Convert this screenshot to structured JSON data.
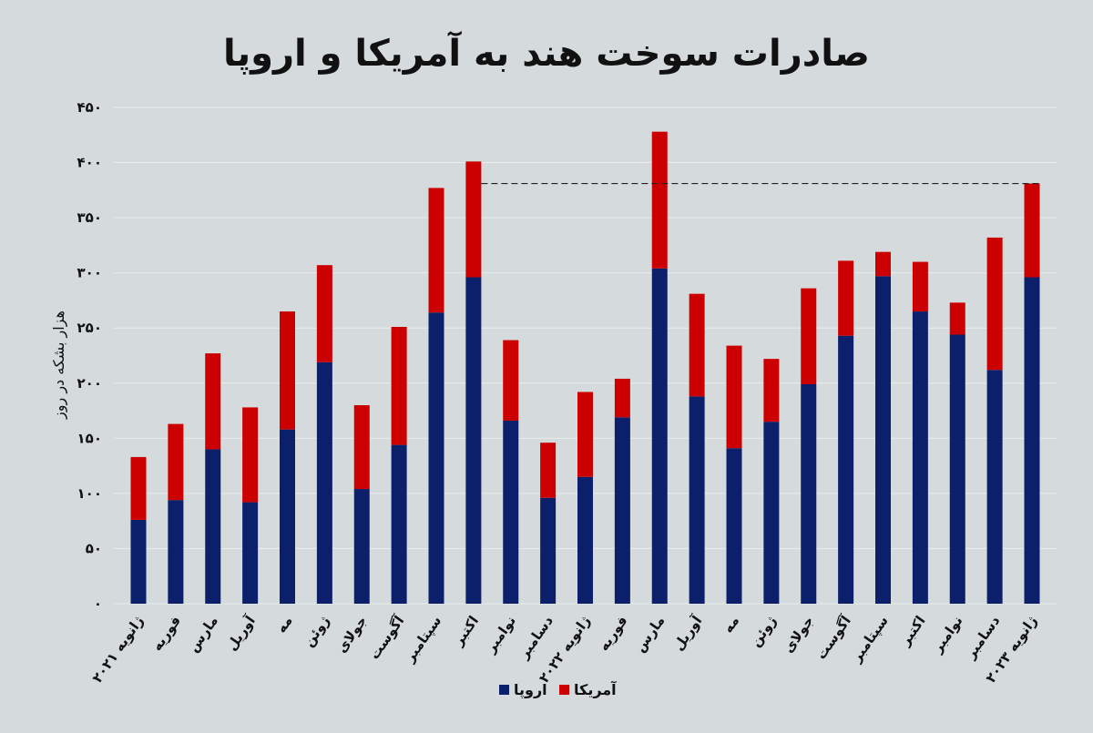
{
  "chart_data": {
    "type": "bar",
    "stacked": true,
    "title": "صادرات سوخت هند به آمریکا و اروپا",
    "ylabel": "هزار بشکه در روز",
    "ylim": [
      0,
      450
    ],
    "yticks": [
      0,
      50,
      100,
      150,
      200,
      250,
      300,
      350,
      400,
      450
    ],
    "ytick_labels": [
      "۰",
      "۵۰",
      "۱۰۰",
      "۱۵۰",
      "۲۰۰",
      "۲۵۰",
      "۳۰۰",
      "۳۵۰",
      "۴۰۰",
      "۴۵۰"
    ],
    "grid": true,
    "legend_position": "bottom-center",
    "categories": [
      "ژانویه ۲۰۲۱",
      "فوریه",
      "مارس",
      "آوریل",
      "مه",
      "ژوئن",
      "جولای",
      "آگوست",
      "سپتامبر",
      "اکتبر",
      "نوامبر",
      "دسامبر",
      "ژانویه ۲۰۲۲",
      "فوریه",
      "مارس",
      "آوریل",
      "مه",
      "ژوئن",
      "جولای",
      "آگوست",
      "سپتامبر",
      "اکتبر",
      "نوامبر",
      "دسامبر",
      "ژانویه ۲۰۲۳"
    ],
    "series": [
      {
        "name": "اروپا",
        "color": "#0c1f6b",
        "values": [
          76,
          94,
          140,
          92,
          158,
          219,
          104,
          144,
          264,
          296,
          166,
          96,
          115,
          169,
          304,
          188,
          141,
          165,
          199,
          243,
          297,
          265,
          244,
          212,
          296
        ]
      },
      {
        "name": "آمریکا",
        "color": "#cc0000",
        "values": [
          57,
          69,
          87,
          86,
          107,
          88,
          76,
          107,
          113,
          105,
          73,
          50,
          77,
          35,
          124,
          93,
          93,
          57,
          87,
          68,
          22,
          45,
          29,
          120,
          85
        ]
      }
    ],
    "reference_line": {
      "value": 381,
      "style": "dashed"
    }
  }
}
